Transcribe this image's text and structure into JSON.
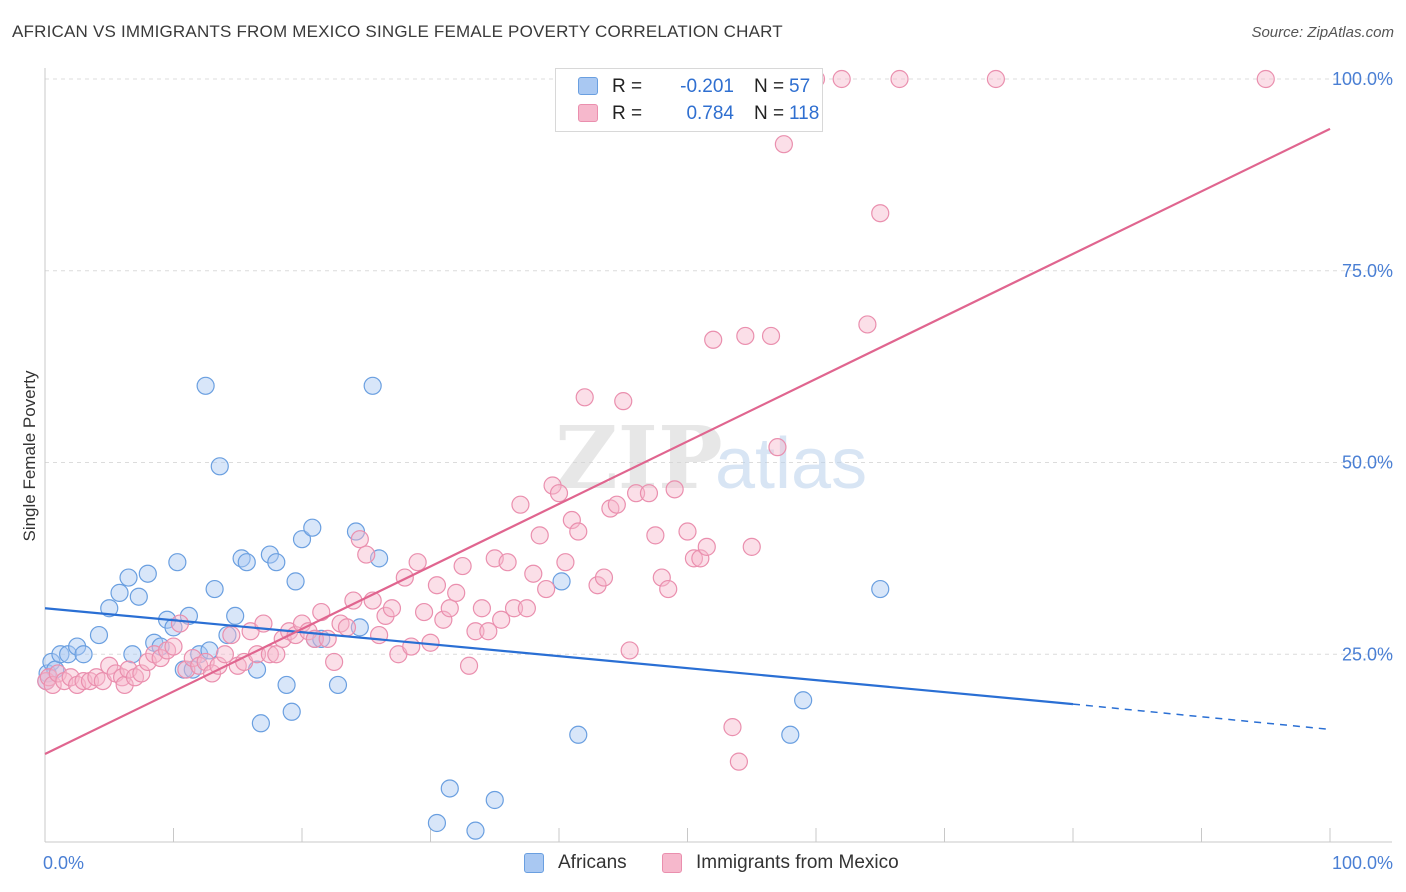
{
  "header": {
    "title": "AFRICAN VS IMMIGRANTS FROM MEXICO SINGLE FEMALE POVERTY CORRELATION CHART",
    "source": "Source: ZipAtlas.com"
  },
  "watermark": {
    "zip": "ZIP",
    "atlas": "atlas"
  },
  "legend_top": {
    "rows": [
      {
        "r_label": "R =",
        "r_value": "-0.201",
        "n_label": "N =",
        "n_value": "57"
      },
      {
        "r_label": "R =",
        "r_value": "0.784",
        "n_label": "N =",
        "n_value": "118"
      }
    ]
  },
  "legend_bottom": {
    "items": [
      {
        "label": "Africans"
      },
      {
        "label": "Immigrants from Mexico"
      }
    ]
  },
  "colors": {
    "africans_fill": "#a9c8f2",
    "africans_stroke": "#6a9fe0",
    "africans_line": "#2a6fd4",
    "mexico_fill": "#f6b8cc",
    "mexico_stroke": "#ea8fae",
    "mexico_line": "#e0658f",
    "tick_label": "#4a7fd4",
    "grid": "#dcdcdc"
  },
  "chart_data": {
    "type": "scatter",
    "title": "AFRICAN VS IMMIGRANTS FROM MEXICO SINGLE FEMALE POVERTY CORRELATION CHART",
    "xlabel": "",
    "ylabel": "Single Female Poverty",
    "xlim": [
      0,
      100
    ],
    "ylim": [
      0,
      102
    ],
    "x_tick_labels": [
      "0.0%",
      "100.0%"
    ],
    "y_ticks": [
      25,
      50,
      75,
      100
    ],
    "y_tick_labels": [
      "25.0%",
      "50.0%",
      "75.0%",
      "100.0%"
    ],
    "grid": true,
    "series": [
      {
        "name": "Africans",
        "r": -0.201,
        "n": 57,
        "trend": {
          "x0": 0,
          "y0": 31.0,
          "x1": 80,
          "y1": 18.5,
          "dash_to_x": 100,
          "dash_to_y": 15.2
        },
        "points": [
          [
            0.2,
            22.5
          ],
          [
            0.5,
            24
          ],
          [
            0.8,
            23
          ],
          [
            1.2,
            25
          ],
          [
            1.8,
            25
          ],
          [
            2.5,
            26
          ],
          [
            3,
            25
          ],
          [
            4.2,
            27.5
          ],
          [
            5,
            31
          ],
          [
            5.8,
            33
          ],
          [
            6.5,
            35
          ],
          [
            6.8,
            25
          ],
          [
            7.3,
            32.5
          ],
          [
            8,
            35.5
          ],
          [
            8.5,
            26.5
          ],
          [
            9,
            26
          ],
          [
            9.5,
            29.5
          ],
          [
            10,
            28.5
          ],
          [
            10.3,
            37
          ],
          [
            10.8,
            23
          ],
          [
            11.2,
            30
          ],
          [
            11.5,
            23
          ],
          [
            12,
            25
          ],
          [
            12.5,
            60
          ],
          [
            12.8,
            25.5
          ],
          [
            13.2,
            33.5
          ],
          [
            13.6,
            49.5
          ],
          [
            14.2,
            27.5
          ],
          [
            14.8,
            30
          ],
          [
            15.3,
            37.5
          ],
          [
            15.7,
            37
          ],
          [
            16.5,
            23
          ],
          [
            16.8,
            16
          ],
          [
            17.5,
            38
          ],
          [
            18,
            37
          ],
          [
            18.8,
            21
          ],
          [
            19.2,
            17.5
          ],
          [
            19.5,
            34.5
          ],
          [
            20,
            40
          ],
          [
            20.8,
            41.5
          ],
          [
            21,
            27
          ],
          [
            21.5,
            27
          ],
          [
            22.8,
            21
          ],
          [
            24.2,
            41
          ],
          [
            24.5,
            28.5
          ],
          [
            25.5,
            60
          ],
          [
            26,
            37.5
          ],
          [
            30.5,
            3
          ],
          [
            31.5,
            7.5
          ],
          [
            33.5,
            2
          ],
          [
            35,
            6
          ],
          [
            40.2,
            34.5
          ],
          [
            41.5,
            14.5
          ],
          [
            58,
            14.5
          ],
          [
            59,
            19
          ],
          [
            65,
            33.5
          ],
          [
            0.1,
            21.5
          ]
        ]
      },
      {
        "name": "Immigrants from Mexico",
        "r": 0.784,
        "n": 118,
        "trend": {
          "x0": 0,
          "y0": 12.0,
          "x1": 100,
          "y1": 93.5
        },
        "points": [
          [
            0.1,
            21.5
          ],
          [
            0.3,
            22
          ],
          [
            0.6,
            21
          ],
          [
            1,
            22.5
          ],
          [
            1.5,
            21.5
          ],
          [
            2,
            22
          ],
          [
            2.5,
            21
          ],
          [
            3,
            21.5
          ],
          [
            3.5,
            21.5
          ],
          [
            4,
            22
          ],
          [
            4.5,
            21.5
          ],
          [
            5,
            23.5
          ],
          [
            5.5,
            22.5
          ],
          [
            6,
            22
          ],
          [
            6.2,
            21
          ],
          [
            6.5,
            23
          ],
          [
            7,
            22
          ],
          [
            7.5,
            22.5
          ],
          [
            8,
            24
          ],
          [
            8.5,
            25
          ],
          [
            9,
            24.5
          ],
          [
            9.5,
            25.5
          ],
          [
            10,
            26
          ],
          [
            10.5,
            29
          ],
          [
            11,
            23
          ],
          [
            11.5,
            24.5
          ],
          [
            12,
            23.5
          ],
          [
            12.5,
            24
          ],
          [
            13,
            22.5
          ],
          [
            13.5,
            23.5
          ],
          [
            14,
            25
          ],
          [
            14.5,
            27.5
          ],
          [
            15,
            23.5
          ],
          [
            15.5,
            24
          ],
          [
            16,
            28
          ],
          [
            16.5,
            25
          ],
          [
            17,
            29
          ],
          [
            17.5,
            25
          ],
          [
            18,
            25
          ],
          [
            18.5,
            27
          ],
          [
            19,
            28
          ],
          [
            19.5,
            27.5
          ],
          [
            20,
            29
          ],
          [
            20.5,
            28
          ],
          [
            21,
            27
          ],
          [
            21.5,
            30.5
          ],
          [
            22,
            27
          ],
          [
            22.5,
            24
          ],
          [
            23,
            29
          ],
          [
            23.5,
            28.5
          ],
          [
            24,
            32
          ],
          [
            24.5,
            40
          ],
          [
            25,
            38
          ],
          [
            25.5,
            32
          ],
          [
            26,
            27.5
          ],
          [
            26.5,
            30
          ],
          [
            27,
            31
          ],
          [
            27.5,
            25
          ],
          [
            28,
            35
          ],
          [
            28.5,
            26
          ],
          [
            29,
            37
          ],
          [
            29.5,
            30.5
          ],
          [
            30,
            26.5
          ],
          [
            30.5,
            34
          ],
          [
            31,
            29.5
          ],
          [
            31.5,
            31
          ],
          [
            32,
            33
          ],
          [
            32.5,
            36.5
          ],
          [
            33,
            23.5
          ],
          [
            33.5,
            28
          ],
          [
            34,
            31
          ],
          [
            34.5,
            28
          ],
          [
            35,
            37.5
          ],
          [
            35.5,
            29.5
          ],
          [
            36,
            37
          ],
          [
            36.5,
            31
          ],
          [
            37,
            44.5
          ],
          [
            37.5,
            31
          ],
          [
            38,
            35.5
          ],
          [
            38.5,
            40.5
          ],
          [
            39,
            33.5
          ],
          [
            39.5,
            47
          ],
          [
            40,
            46
          ],
          [
            40.5,
            37
          ],
          [
            41,
            42.5
          ],
          [
            41.5,
            41
          ],
          [
            42,
            58.5
          ],
          [
            43,
            34
          ],
          [
            43.5,
            35
          ],
          [
            44,
            44
          ],
          [
            44.5,
            44.5
          ],
          [
            45,
            58
          ],
          [
            45.5,
            25.5
          ],
          [
            46,
            46
          ],
          [
            47,
            46
          ],
          [
            47.5,
            40.5
          ],
          [
            48,
            35
          ],
          [
            48.5,
            33.5
          ],
          [
            49,
            46.5
          ],
          [
            50,
            41
          ],
          [
            50.5,
            37.5
          ],
          [
            51,
            37.5
          ],
          [
            51.5,
            39
          ],
          [
            52,
            66
          ],
          [
            53.5,
            15.5
          ],
          [
            54,
            11
          ],
          [
            54.5,
            66.5
          ],
          [
            55,
            39
          ],
          [
            56.5,
            66.5
          ],
          [
            57,
            52
          ],
          [
            57.5,
            91.5
          ],
          [
            60,
            100
          ],
          [
            62,
            100
          ],
          [
            64,
            68
          ],
          [
            65,
            82.5
          ],
          [
            66.5,
            100
          ],
          [
            74,
            100
          ],
          [
            95,
            100
          ]
        ]
      }
    ]
  }
}
